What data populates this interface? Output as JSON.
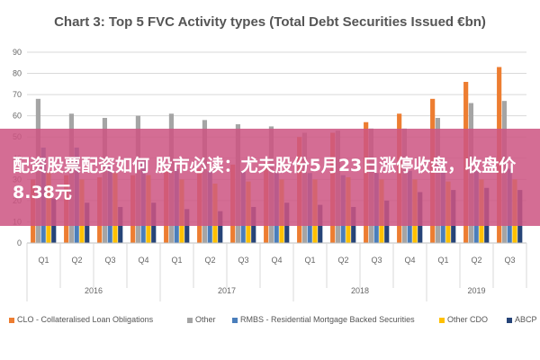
{
  "chart_data": {
    "type": "bar",
    "title": "Chart 3: Top 5 FVC Activity types (Total Debt Securities Issued €bn)",
    "ylim": [
      0,
      90
    ],
    "yticks": [
      0,
      10,
      20,
      30,
      40,
      50,
      60,
      70,
      80,
      90
    ],
    "categories": [
      "Q1",
      "Q2",
      "Q3",
      "Q4",
      "Q1",
      "Q2",
      "Q3",
      "Q4",
      "Q1",
      "Q2",
      "Q3",
      "Q4",
      "Q1",
      "Q2",
      "Q3"
    ],
    "years": [
      {
        "label": "2016",
        "start": 0,
        "end": 4
      },
      {
        "label": "2017",
        "start": 4,
        "end": 8
      },
      {
        "label": "2018",
        "start": 8,
        "end": 12
      },
      {
        "label": "2019",
        "start": 12,
        "end": 15
      }
    ],
    "grid": true,
    "legend_position": "bottom",
    "series": [
      {
        "name": "CLO - Collateralised Loan Obligations",
        "color": "#ed7d31",
        "values": [
          30,
          32,
          31,
          32,
          34,
          35,
          37,
          38,
          50,
          52,
          57,
          61,
          68,
          76,
          83
        ]
      },
      {
        "name": "Other",
        "color": "#a5a5a5",
        "values": [
          68,
          61,
          59,
          60,
          61,
          58,
          56,
          55,
          52,
          53,
          54,
          54,
          59,
          66,
          67
        ]
      },
      {
        "name": "RMBS - Residential Mortgage Backed Securities",
        "color": "#4a7ebb",
        "values": [
          45,
          45,
          37,
          39,
          35,
          34,
          34,
          33,
          33,
          32,
          33,
          34,
          34,
          34,
          35
        ]
      },
      {
        "name": "Other CDO",
        "color": "#ffc000",
        "values": [
          33,
          30,
          33,
          32,
          30,
          28,
          29,
          30,
          30,
          31,
          30,
          30,
          29,
          30,
          30
        ]
      },
      {
        "name": "ABCP",
        "color": "#264478",
        "values": [
          21,
          19,
          17,
          19,
          16,
          15,
          17,
          19,
          18,
          17,
          20,
          24,
          25,
          26,
          25
        ]
      }
    ]
  },
  "overlay": {
    "text": "配资股票配资如何 股市必读：尤夫股份5月23日涨停收盘，收盘价8.38元"
  }
}
